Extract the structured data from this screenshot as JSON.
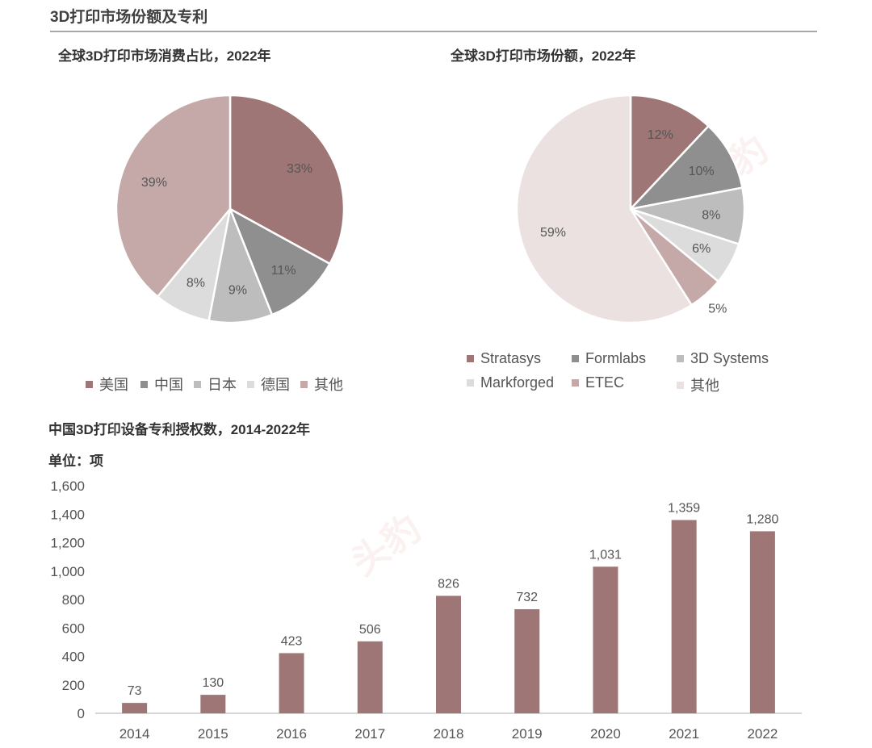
{
  "header": {
    "title": "3D打印市场份额及专利"
  },
  "charts": {
    "consumption": {
      "title": "全球3D打印市场消费占比，2022年"
    },
    "share": {
      "title": "全球3D打印市场份额，2022年"
    },
    "patents": {
      "title": "中国3D打印设备专利授权数，2014-2022年",
      "unit": "单位：项"
    }
  },
  "colors": {
    "c1": "#9e7675",
    "c2": "#8f8f8f",
    "c3": "#bdbdbd",
    "c4": "#dcdcdc",
    "c5": "#c5a9a8",
    "c6": "#ebe1e1",
    "bar": "#9e7675"
  },
  "chart_data": [
    {
      "type": "pie",
      "title": "全球3D打印市场消费占比，2022年",
      "categories": [
        "美国",
        "中国",
        "日本",
        "德国",
        "其他"
      ],
      "values": [
        33,
        11,
        9,
        8,
        39
      ],
      "labels": [
        "33%",
        "11%",
        "9%",
        "8%",
        "39%"
      ],
      "colors": [
        "#9e7675",
        "#8f8f8f",
        "#bdbdbd",
        "#dcdcdc",
        "#c5a9a8"
      ],
      "legend": "bottom"
    },
    {
      "type": "pie",
      "title": "全球3D打印市场份额，2022年",
      "categories": [
        "Stratasys",
        "Formlabs",
        "3D Systems",
        "Markforged",
        "ETEC",
        "其他"
      ],
      "values": [
        12,
        10,
        8,
        6,
        5,
        59
      ],
      "labels": [
        "12%",
        "10%",
        "8%",
        "6%",
        "5%",
        "59%"
      ],
      "colors": [
        "#9e7675",
        "#8f8f8f",
        "#bdbdbd",
        "#dcdcdc",
        "#c5a9a8",
        "#ebe1e1"
      ],
      "legend": "bottom"
    },
    {
      "type": "bar",
      "title": "中国3D打印设备专利授权数，2014-2022年",
      "ylabel": "单位：项",
      "categories": [
        "2014",
        "2015",
        "2016",
        "2017",
        "2018",
        "2019",
        "2020",
        "2021",
        "2022"
      ],
      "values": [
        73,
        130,
        423,
        506,
        826,
        732,
        1031,
        1359,
        1280
      ],
      "value_labels": [
        "73",
        "130",
        "423",
        "506",
        "826",
        "732",
        "1,031",
        "1,359",
        "1,280"
      ],
      "ylim": [
        0,
        1600
      ],
      "yticks": [
        "0",
        "200",
        "400",
        "600",
        "800",
        "1,000",
        "1,200",
        "1,400",
        "1,600"
      ],
      "grid": false
    }
  ]
}
